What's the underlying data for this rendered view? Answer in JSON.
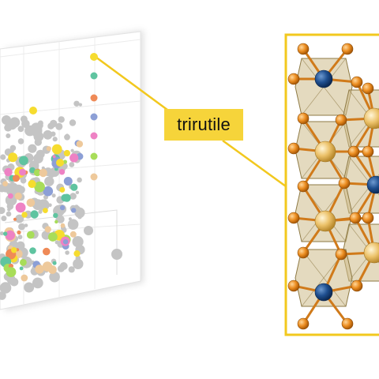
{
  "callout": {
    "label": "trirutile"
  },
  "colors": {
    "highlight": "#f6d43a",
    "callout_line": "#f2c81e",
    "gray_points": "#c4c4c4",
    "legend": [
      "#f6dc2f",
      "#5fc4a0",
      "#ef8a57",
      "#8c9fd6",
      "#ee82c4",
      "#a8dd59",
      "#eec99b"
    ],
    "polyhedron": "#cdbb8a",
    "cation_gold": "#e7b85a",
    "cation_blue": "#1f4f8f",
    "anion_orange": "#e88a1c"
  },
  "structure": {
    "name": "trirutile"
  }
}
